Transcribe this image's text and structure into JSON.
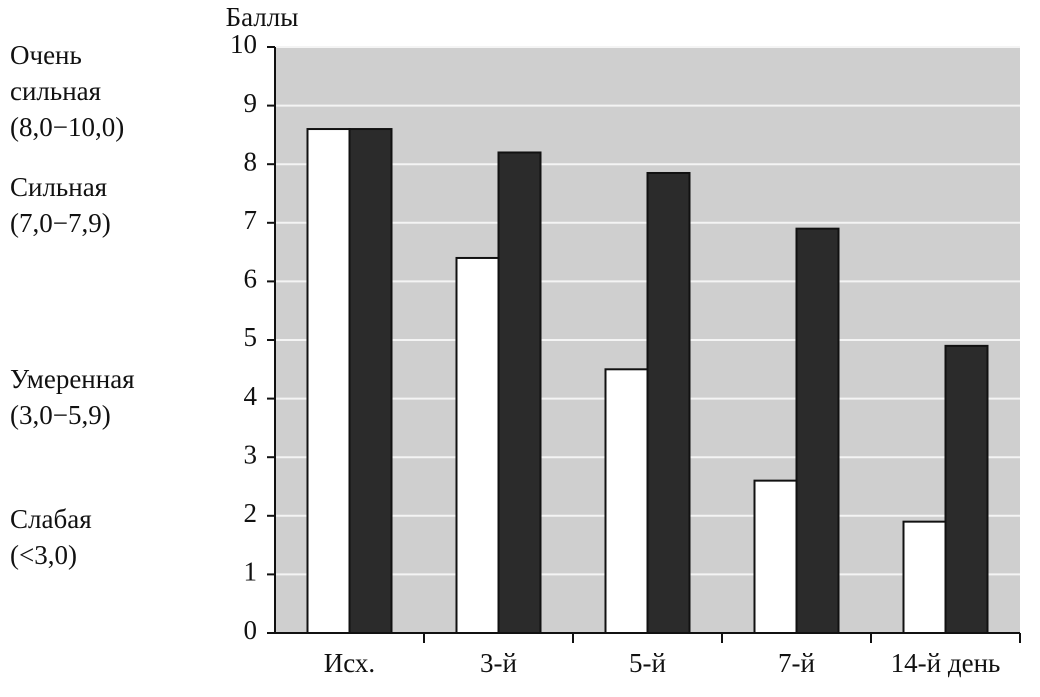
{
  "chart_data": {
    "type": "bar",
    "y_label": "Баллы",
    "categories": [
      "Исх.",
      "3-й",
      "5-й",
      "7-й",
      "14-й день"
    ],
    "series": [
      {
        "color": "#ffffff",
        "values": [
          8.6,
          6.4,
          4.5,
          2.6,
          1.9
        ]
      },
      {
        "color": "#2b2b2b",
        "values": [
          8.6,
          8.2,
          7.85,
          6.9,
          4.9
        ]
      }
    ],
    "ylim": [
      0,
      10
    ],
    "yticks": [
      0,
      1,
      2,
      3,
      4,
      5,
      6,
      7,
      8,
      9,
      10
    ],
    "grid": true,
    "annotations": [
      {
        "lines": [
          "Очень",
          "сильная",
          "(8,0−10,0)"
        ]
      },
      {
        "lines": [
          "Сильная",
          "(7,0−7,9)"
        ]
      },
      {
        "lines": [
          "Умеренная",
          "(3,0−5,9)"
        ]
      },
      {
        "lines": [
          "Слабая",
          "(<3,0)"
        ]
      }
    ]
  }
}
